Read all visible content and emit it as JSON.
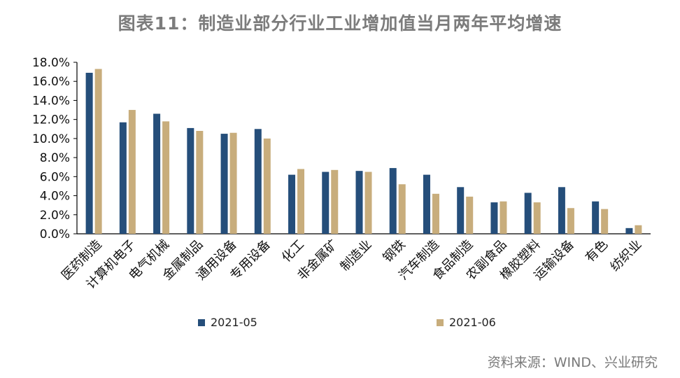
{
  "title": "图表11：制造业部分行业工业增加值当月两年平均增速",
  "source": "资料来源：WIND、兴业研究",
  "colors": {
    "series1": "#254e7a",
    "series2": "#c8ad7c",
    "axis": "#000000"
  },
  "chart_data": {
    "type": "bar",
    "title": "图表11：制造业部分行业工业增加值当月两年平均增速",
    "xlabel": "",
    "ylabel": "",
    "ylim": [
      0,
      18
    ],
    "yticks": [
      0,
      2,
      4,
      6,
      8,
      10,
      12,
      14,
      16,
      18
    ],
    "ytick_labels": [
      "0.0%",
      "2.0%",
      "4.0%",
      "6.0%",
      "8.0%",
      "10.0%",
      "12.0%",
      "14.0%",
      "16.0%",
      "18.0%"
    ],
    "grid": false,
    "legend_position": "bottom",
    "categories": [
      "医药制造",
      "计算机电子",
      "电气机械",
      "金属制品",
      "通用设备",
      "专用设备",
      "化工",
      "非金属矿",
      "制造业",
      "钢铁",
      "汽车制造",
      "食品制造",
      "农副食品",
      "橡胶塑料",
      "运输设备",
      "有色",
      "纺织业"
    ],
    "series": [
      {
        "name": "2021-05",
        "color": "#254e7a",
        "values": [
          16.9,
          11.7,
          12.6,
          11.1,
          10.5,
          11.0,
          6.2,
          6.5,
          6.6,
          6.9,
          6.2,
          4.9,
          3.3,
          4.3,
          4.9,
          3.4,
          0.6
        ]
      },
      {
        "name": "2021-06",
        "color": "#c8ad7c",
        "values": [
          17.3,
          13.0,
          11.8,
          10.8,
          10.6,
          10.0,
          6.8,
          6.7,
          6.5,
          5.2,
          4.2,
          3.9,
          3.4,
          3.3,
          2.7,
          2.6,
          0.9
        ]
      }
    ]
  }
}
